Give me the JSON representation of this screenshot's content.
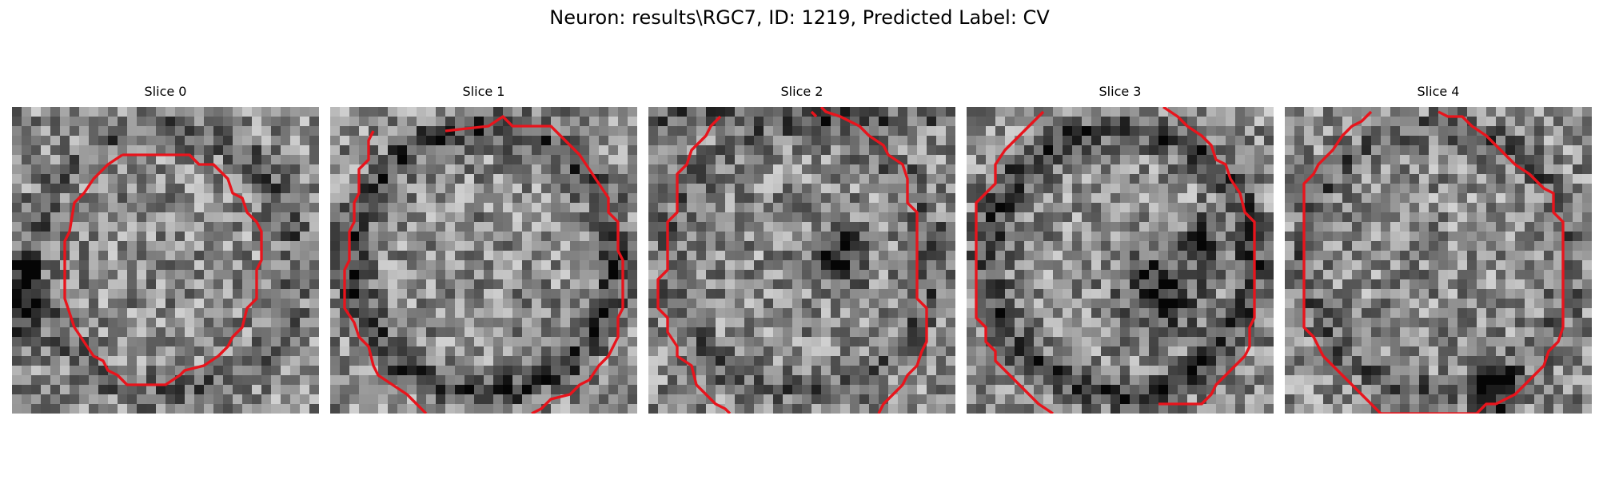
{
  "figure": {
    "title": "Neuron: results\\RGC7, ID: 1219, Predicted Label: CV"
  },
  "panels": [
    {
      "title": "Slice 0",
      "seed": 11,
      "dark_blobs": [],
      "edge_dark": "left"
    },
    {
      "title": "Slice 1",
      "seed": 23,
      "dark_blobs": [],
      "edge_dark": "ring"
    },
    {
      "title": "Slice 2",
      "seed": 37,
      "dark_blobs": [
        [
          0.62,
          0.48,
          0.09
        ]
      ],
      "edge_dark": "top"
    },
    {
      "title": "Slice 3",
      "seed": 41,
      "dark_blobs": [
        [
          0.63,
          0.6,
          0.12
        ],
        [
          0.77,
          0.43,
          0.06
        ]
      ],
      "edge_dark": "ring"
    },
    {
      "title": "Slice 4",
      "seed": 59,
      "dark_blobs": [],
      "edge_dark": "bottom"
    }
  ],
  "contour_color": "#e8141c"
}
